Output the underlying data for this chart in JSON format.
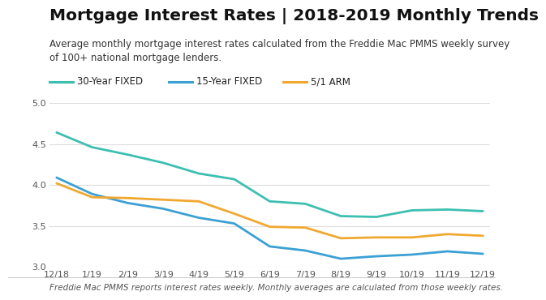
{
  "title": "Mortgage Interest Rates | 2018-2019 Monthly Trends",
  "subtitle": "Average monthly mortgage interest rates calculated from the Freddie Mac PMMS weekly survey\nof 100+ national mortgage lenders.",
  "footnote": "Freddie Mac PMMS reports interest rates weekly. Monthly averages are calculated from those weekly rates.",
  "x_labels": [
    "12/18",
    "1/19",
    "2/19",
    "3/19",
    "4/19",
    "5/19",
    "6/19",
    "7/19",
    "8/19",
    "9/19",
    "10/19",
    "11/19",
    "12/19"
  ],
  "series": [
    {
      "label": "30-Year FIXED",
      "color": "#3dbfb0",
      "values": [
        4.64,
        4.46,
        4.37,
        4.27,
        4.14,
        4.07,
        3.8,
        3.77,
        3.62,
        3.61,
        3.69,
        3.7,
        3.68
      ]
    },
    {
      "label": "15-Year FIXED",
      "color": "#3ba0d4",
      "values": [
        4.09,
        3.89,
        3.78,
        3.71,
        3.6,
        3.53,
        3.25,
        3.2,
        3.1,
        3.13,
        3.15,
        3.19,
        3.16
      ]
    },
    {
      "label": "5/1 ARM",
      "color": "#f0a830",
      "values": [
        4.02,
        3.85,
        3.84,
        3.82,
        3.8,
        3.65,
        3.49,
        3.48,
        3.35,
        3.36,
        3.36,
        3.4,
        3.38
      ]
    }
  ],
  "ylim": [
    3.0,
    5.0
  ],
  "yticks": [
    3.0,
    3.5,
    4.0,
    4.5,
    5.0
  ],
  "background_color": "#ffffff",
  "grid_color": "#dddddd",
  "title_fontsize": 14.5,
  "subtitle_fontsize": 8.5,
  "legend_fontsize": 8.5,
  "tick_fontsize": 8,
  "footnote_fontsize": 7.5
}
